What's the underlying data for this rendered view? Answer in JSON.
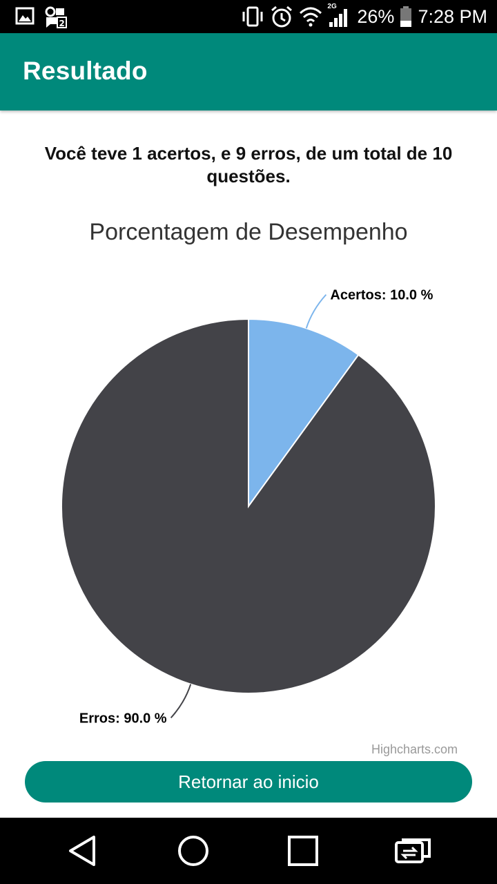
{
  "status_bar": {
    "battery_percent": "26%",
    "time": "7:28 PM",
    "network_label": "2G",
    "icons": [
      "image-icon",
      "sim-badge-icon",
      "vibrate-icon",
      "alarm-icon",
      "wifi-icon",
      "signal-icon",
      "battery-icon"
    ]
  },
  "app_bar": {
    "title": "Resultado",
    "color": "#00897b"
  },
  "summary": {
    "text": "Você teve 1 acertos, e 9 erros, de um total de 10 questões."
  },
  "chart_data": {
    "type": "pie",
    "title": "Porcentagem de Desempenho",
    "slices": [
      {
        "name": "Acertos",
        "value": 10.0,
        "label": "Acertos: 10.0 %",
        "color": "#7cb5ec"
      },
      {
        "name": "Erros",
        "value": 90.0,
        "label": "Erros: 90.0 %",
        "color": "#434348"
      }
    ],
    "credit": "Highcharts.com"
  },
  "actions": {
    "return_label": "Retornar ao inicio"
  },
  "nav_bar": {
    "icons": [
      "back-icon",
      "home-icon",
      "recents-icon",
      "switch-app-icon"
    ]
  }
}
